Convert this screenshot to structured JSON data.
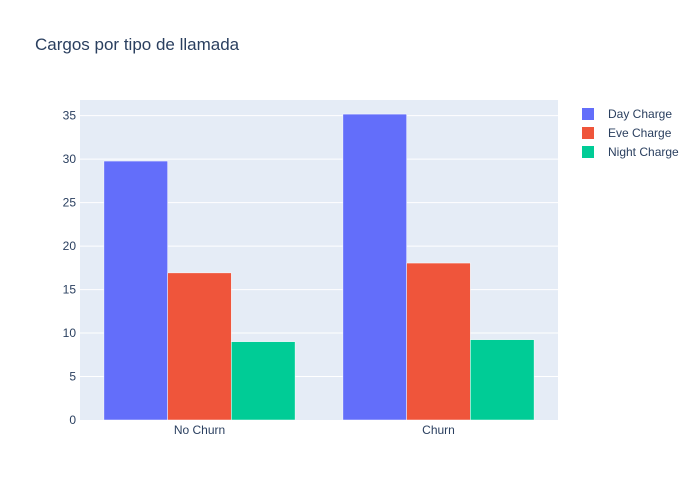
{
  "chart_data": {
    "type": "bar",
    "title": "Cargos por tipo de llamada",
    "xlabel": "",
    "ylabel": "",
    "categories": [
      "No Churn",
      "Churn"
    ],
    "series": [
      {
        "name": "Day Charge",
        "color": "#636efa",
        "values": [
          29.78,
          35.18
        ]
      },
      {
        "name": "Eve Charge",
        "color": "#ef553b",
        "values": [
          16.92,
          18.05
        ]
      },
      {
        "name": "Night Charge",
        "color": "#00cc96",
        "values": [
          9.01,
          9.24
        ]
      }
    ],
    "ylim": [
      0,
      36.8
    ],
    "yticks": [
      0,
      5,
      10,
      15,
      20,
      25,
      30,
      35
    ],
    "grid": true,
    "legend_position": "top-right",
    "plot_background": "#e5ecf6"
  }
}
